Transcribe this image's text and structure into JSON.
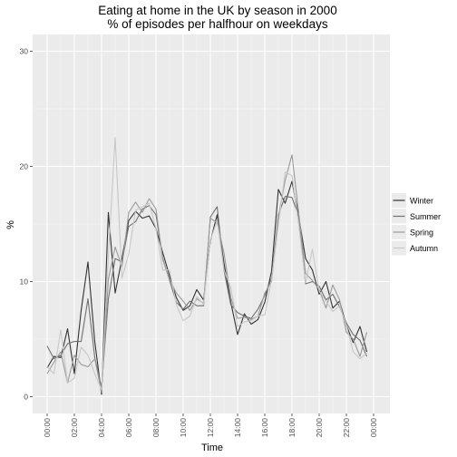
{
  "chart_data": {
    "type": "line",
    "title": "Eating at home in the UK by season in 2000",
    "subtitle": "% of episodes per halfhour on weekdays",
    "xlabel": "Time",
    "ylabel": "%",
    "ylim": [
      0,
      30
    ],
    "yticks": [
      0,
      10,
      20,
      30
    ],
    "xlim": [
      0,
      24
    ],
    "xticks": [
      {
        "value": 0,
        "label": "00:00"
      },
      {
        "value": 2,
        "label": "02:00"
      },
      {
        "value": 4,
        "label": "04:00"
      },
      {
        "value": 6,
        "label": "06:00"
      },
      {
        "value": 8,
        "label": "08:00"
      },
      {
        "value": 10,
        "label": "10:00"
      },
      {
        "value": 12,
        "label": "12:00"
      },
      {
        "value": 14,
        "label": "14:00"
      },
      {
        "value": 16,
        "label": "16:00"
      },
      {
        "value": 18,
        "label": "18:00"
      },
      {
        "value": 20,
        "label": "20:00"
      },
      {
        "value": 22,
        "label": "22:00"
      },
      {
        "value": 24,
        "label": "00:00"
      }
    ],
    "grid": true,
    "legend_position": "right",
    "x": [
      0,
      0.5,
      1,
      1.5,
      2,
      2.5,
      3,
      3.5,
      4,
      4.5,
      5,
      5.5,
      6,
      6.5,
      7,
      7.5,
      8,
      8.5,
      9,
      9.5,
      10,
      10.5,
      11,
      11.5,
      12,
      12.5,
      13,
      13.5,
      14,
      14.5,
      15,
      15.5,
      16,
      16.5,
      17,
      17.5,
      18,
      18.5,
      19,
      19.5,
      20,
      20.5,
      21,
      21.5,
      22,
      22.5,
      23,
      23.5
    ],
    "series": [
      {
        "name": "Winter",
        "color": "#333333",
        "values": [
          2.5,
          3.5,
          3.4,
          5.9,
          2.0,
          7.5,
          11.7,
          4.8,
          0.2,
          16.0,
          9.0,
          12.0,
          15.3,
          16.1,
          15.5,
          15.7,
          14.6,
          12.5,
          10.5,
          8.6,
          7.5,
          7.9,
          9.3,
          8.4,
          13.5,
          15.8,
          11.6,
          8.2,
          5.4,
          7.2,
          6.3,
          6.7,
          8.2,
          10.9,
          18.0,
          16.8,
          18.7,
          15.6,
          12.0,
          11.0,
          8.9,
          10.0,
          7.7,
          8.3,
          6.2,
          4.7,
          6.1,
          3.9
        ]
      },
      {
        "name": "Summer",
        "color": "#707070",
        "values": [
          4.4,
          3.3,
          3.6,
          4.6,
          4.8,
          4.8,
          8.5,
          3.4,
          0.8,
          8.5,
          12.0,
          11.7,
          14.8,
          15.2,
          16.3,
          16.6,
          15.8,
          12.0,
          10.1,
          8.2,
          7.6,
          8.3,
          7.9,
          7.9,
          15.6,
          16.5,
          11.0,
          8.0,
          7.3,
          7.0,
          6.8,
          7.6,
          8.8,
          10.3,
          15.8,
          17.4,
          17.3,
          15.7,
          9.8,
          10.0,
          9.6,
          8.4,
          8.9,
          7.8,
          6.4,
          5.4,
          4.9,
          3.5
        ]
      },
      {
        "name": "Spring",
        "color": "#9a9a9a",
        "values": [
          2.0,
          3.0,
          3.9,
          1.2,
          3.6,
          2.8,
          2.6,
          3.3,
          0.4,
          10.2,
          13.0,
          11.3,
          16.0,
          16.9,
          16.0,
          17.2,
          16.3,
          11.9,
          10.2,
          9.0,
          8.3,
          7.5,
          8.5,
          8.1,
          15.5,
          15.1,
          12.5,
          8.6,
          6.8,
          6.9,
          6.7,
          7.0,
          9.0,
          10.0,
          15.6,
          18.8,
          21.0,
          15.9,
          10.7,
          10.1,
          9.3,
          7.7,
          9.7,
          8.4,
          5.6,
          5.0,
          3.5,
          5.6
        ]
      },
      {
        "name": "Autumn",
        "color": "#c8c8c8",
        "values": [
          2.6,
          2.0,
          5.8,
          1.2,
          1.6,
          4.3,
          3.6,
          2.0,
          0.6,
          12.2,
          22.5,
          10.3,
          12.4,
          16.2,
          16.5,
          16.8,
          14.6,
          11.0,
          11.0,
          8.0,
          6.6,
          7.0,
          8.7,
          8.0,
          13.6,
          15.3,
          11.0,
          9.5,
          6.1,
          6.5,
          6.6,
          7.0,
          7.1,
          10.2,
          14.9,
          19.5,
          19.2,
          14.9,
          9.9,
          12.8,
          9.2,
          8.3,
          7.4,
          7.9,
          6.2,
          3.9,
          3.3,
          3.8
        ]
      }
    ]
  }
}
